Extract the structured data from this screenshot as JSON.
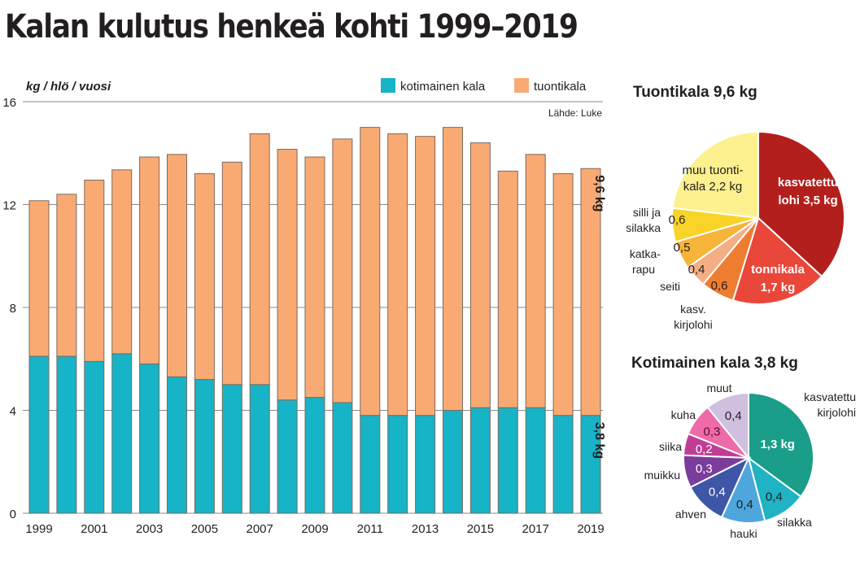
{
  "title": "Kalan kulutus henkeä kohti 1999–2019",
  "colors": {
    "domestic": "#17b3c6",
    "import": "#f9aa73",
    "bar_outline": "#7a6a5e",
    "grid": "#8a8a8a"
  },
  "chart_data": [
    {
      "type": "bar",
      "stacked": true,
      "title": "Kalan kulutus henkeä kohti 1999–2019",
      "ylabel": "kg / hlö / vuosi",
      "xlabel": "",
      "source": "Lähde: Luke",
      "ylim": [
        0,
        16
      ],
      "yticks": [
        0,
        4,
        8,
        12,
        16
      ],
      "grid": true,
      "legend_position": "top-right",
      "categories": [
        "1999",
        "2000",
        "2001",
        "2002",
        "2003",
        "2004",
        "2005",
        "2006",
        "2007",
        "2008",
        "2009",
        "2010",
        "2011",
        "2012",
        "2013",
        "2014",
        "2015",
        "2016",
        "2017",
        "2018",
        "2019"
      ],
      "xtick_labels": [
        "1999",
        "",
        "2001",
        "",
        "2003",
        "",
        "2005",
        "",
        "2007",
        "",
        "2009",
        "",
        "2011",
        "",
        "2013",
        "",
        "2015",
        "",
        "2017",
        "",
        "2019"
      ],
      "series": [
        {
          "name": "kotimainen kala",
          "color": "#17b3c6",
          "values": [
            6.1,
            6.1,
            5.9,
            6.2,
            5.8,
            5.3,
            5.2,
            5.0,
            5.0,
            4.4,
            4.5,
            4.3,
            3.8,
            3.8,
            3.8,
            4.0,
            4.1,
            4.1,
            4.1,
            3.8,
            3.8
          ]
        },
        {
          "name": "tuontikala",
          "color": "#f9aa73",
          "values": [
            6.05,
            6.3,
            7.05,
            7.15,
            8.05,
            8.65,
            8.0,
            8.65,
            9.75,
            9.75,
            9.35,
            10.25,
            11.2,
            10.95,
            10.85,
            11.0,
            10.3,
            9.2,
            9.85,
            9.4,
            9.6
          ]
        }
      ],
      "annotations": [
        {
          "text": "9,6 kg",
          "category": "2019",
          "series": "tuontikala"
        },
        {
          "text": "3,8 kg",
          "category": "2019",
          "series": "kotimainen kala"
        }
      ]
    },
    {
      "type": "pie",
      "title": "Tuontikala 9,6 kg",
      "slices": [
        {
          "name": "kasvatettu lohi",
          "value": 3.5,
          "label": "kasvatettu lohi 3,5 kg",
          "color": "#b31f1c",
          "text_color": "#ffffff"
        },
        {
          "name": "tonnikala",
          "value": 1.7,
          "label": "tonnikala 1,7 kg",
          "color": "#e9473a",
          "text_color": "#ffffff"
        },
        {
          "name": "kasv. kirjolohi",
          "value": 0.6,
          "label": "0,6",
          "color": "#ef7d2f",
          "text_color": "#231f20"
        },
        {
          "name": "seiti",
          "value": 0.4,
          "label": "0,4",
          "color": "#f5ae84",
          "text_color": "#231f20"
        },
        {
          "name": "katkarapu",
          "value": 0.5,
          "label": "0,5",
          "color": "#f7b43a",
          "text_color": "#231f20"
        },
        {
          "name": "silli ja silakka",
          "value": 0.6,
          "label": "0,6",
          "color": "#f9d327",
          "text_color": "#231f20"
        },
        {
          "name": "muu tuontikala",
          "value": 2.2,
          "label": "muu tuontikala 2,2 kg",
          "color": "#fdf08f",
          "text_color": "#231f20"
        }
      ],
      "outer_labels": [
        "silli ja silakka",
        "katka-rapu",
        "seiti",
        "kasv. kirjolohi"
      ]
    },
    {
      "type": "pie",
      "title": "Kotimainen kala 3,8 kg",
      "slices": [
        {
          "name": "kasvatettu kirjolohi",
          "value": 1.3,
          "label": "1,3 kg",
          "color": "#1a9e8a",
          "text_color": "#ffffff"
        },
        {
          "name": "silakka",
          "value": 0.4,
          "label": "0,4",
          "color": "#1fb3c4",
          "text_color": "#231f20"
        },
        {
          "name": "hauki",
          "value": 0.4,
          "label": "0,4",
          "color": "#4ea6dc",
          "text_color": "#231f20"
        },
        {
          "name": "ahven",
          "value": 0.4,
          "label": "0,4",
          "color": "#3d56a6",
          "text_color": "#ffffff"
        },
        {
          "name": "muikku",
          "value": 0.3,
          "label": "0,3",
          "color": "#7b3d9b",
          "text_color": "#ffffff"
        },
        {
          "name": "siika",
          "value": 0.2,
          "label": "0,2",
          "color": "#c03d96",
          "text_color": "#ffffff"
        },
        {
          "name": "kuha",
          "value": 0.3,
          "label": "0,3",
          "color": "#ef6aa8",
          "text_color": "#5b1033"
        },
        {
          "name": "muut",
          "value": 0.4,
          "label": "0,4",
          "color": "#cfc0e0",
          "text_color": "#231f20"
        }
      ],
      "outer_labels": [
        "kasvatettu kirjolohi",
        "silakka",
        "hauki",
        "ahven",
        "muikku",
        "siika",
        "kuha",
        "muut"
      ]
    }
  ],
  "labels": {
    "ylabel": "kg / hlö / vuosi",
    "legend_domestic": "kotimainen kala",
    "legend_import": "tuontikala",
    "source": "Lähde: Luke",
    "annot_import": "9,6 kg",
    "annot_domestic": "3,8 kg",
    "pie1_title": "Tuontikala 9,6 kg",
    "pie1_lohi_1": "kasvatettu",
    "pie1_lohi_2": "lohi 3,5 kg",
    "pie1_tonni_1": "tonnikala",
    "pie1_tonni_2": "1,7 kg",
    "pie1_muu_1": "muu tuonti-",
    "pie1_muu_2": "kala 2,2 kg",
    "pie1_silli_val": "0,6",
    "pie1_katka_val": "0,5",
    "pie1_seiti_val": "0,4",
    "pie1_kirjo_val": "0,6",
    "pie1_out_silli_1": "silli ja",
    "pie1_out_silli_2": "silakka",
    "pie1_out_katka_1": "katka-",
    "pie1_out_katka_2": "rapu",
    "pie1_out_seiti": "seiti",
    "pie1_out_kirjo_1": "kasv.",
    "pie1_out_kirjo_2": "kirjolohi",
    "pie2_title": "Kotimainen kala 3,8 kg",
    "pie2_out_kirjo_1": "kasvatettu",
    "pie2_out_kirjo_2": "kirjolohi",
    "pie2_out_silakka": "silakka",
    "pie2_out_hauki": "hauki",
    "pie2_out_ahven": "ahven",
    "pie2_out_muikku": "muikku",
    "pie2_out_siika": "siika",
    "pie2_out_kuha": "kuha",
    "pie2_out_muut": "muut"
  }
}
